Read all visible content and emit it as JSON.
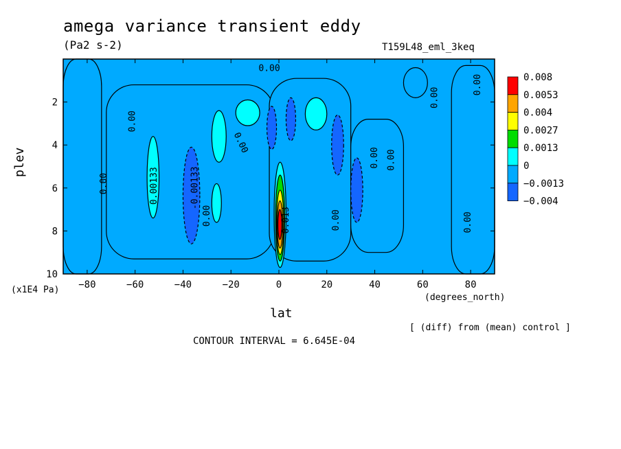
{
  "title": "amega variance transient eddy",
  "units": "(Pa2 s-2)",
  "experiment": "T159L48_eml_3keq",
  "note": "[ (diff) from (mean) control ]",
  "contour_interval": "CONTOUR INTERVAL = 6.645E-04",
  "chart_data": {
    "type": "heatmap",
    "xlabel": "lat",
    "x_unit": "(degrees_north)",
    "ylabel": "plev",
    "y_unit": "(x1E4 Pa)",
    "xlim": [
      -90,
      90
    ],
    "ylim": [
      0,
      10
    ],
    "y_inverted": true,
    "x_ticks": [
      -80,
      -60,
      -40,
      -20,
      0,
      20,
      40,
      60,
      80
    ],
    "y_ticks": [
      2,
      4,
      6,
      8,
      10
    ],
    "colorbar": {
      "labels": [
        "0.008",
        "0.0053",
        "0.004",
        "0.0027",
        "0.0013",
        "0",
        "−0.0013",
        "−0.004"
      ],
      "colors": [
        "#ff0000",
        "#ffa500",
        "#ffff00",
        "#00dd00",
        "#00ffff",
        "#00aaff",
        "#1466ff",
        "#1466ff"
      ],
      "levels": [
        0.008,
        0.0053,
        0.004,
        0.0027,
        0.0013,
        0,
        -0.0013,
        -0.004
      ]
    },
    "background_color": "#00aaff",
    "contour_labels": [
      {
        "text": "0.00",
        "lat": -73,
        "plev": 5.8,
        "angle": -90
      },
      {
        "text": "0.00133",
        "lat": -52,
        "plev": 5.9,
        "angle": -90
      },
      {
        "text": "-0.00133",
        "lat": -35,
        "plev": 6.0,
        "angle": -90
      },
      {
        "text": "0.00",
        "lat": -61,
        "plev": 2.9,
        "angle": -90
      },
      {
        "text": "0.00",
        "lat": -30,
        "plev": 7.3,
        "angle": -90
      },
      {
        "text": "0.00",
        "lat": -16,
        "plev": 3.9,
        "angle": 65
      },
      {
        "text": "0.00",
        "lat": -4,
        "plev": 0.45,
        "angle": 0
      },
      {
        "text": "0.00",
        "lat": 24,
        "plev": 7.5,
        "angle": -90
      },
      {
        "text": "0.00",
        "lat": 40,
        "plev": 4.6,
        "angle": -90
      },
      {
        "text": "0.00",
        "lat": 47,
        "plev": 4.7,
        "angle": -90
      },
      {
        "text": "0.00",
        "lat": 65,
        "plev": 1.8,
        "angle": -90
      },
      {
        "text": "0.00",
        "lat": 83,
        "plev": 1.2,
        "angle": -90
      },
      {
        "text": "0.00",
        "lat": 79,
        "plev": 7.6,
        "angle": -90
      },
      {
        "text": "0.013",
        "lat": 3,
        "plev": 7.5,
        "angle": -90
      }
    ],
    "regions": [
      {
        "v": 0,
        "lat": [
          -90,
          -74
        ],
        "plev": [
          0,
          10
        ]
      },
      {
        "v": 0,
        "lat": [
          -72,
          -2
        ],
        "plev": [
          1.2,
          9.3
        ]
      },
      {
        "v": 0,
        "lat": [
          -4,
          30
        ],
        "plev": [
          0.9,
          9.4
        ]
      },
      {
        "v": 0,
        "lat": [
          30,
          52
        ],
        "plev": [
          2.8,
          9.0
        ]
      },
      {
        "v": 0,
        "lat": [
          52,
          62
        ],
        "plev": [
          0.4,
          1.8
        ]
      },
      {
        "v": 0,
        "lat": [
          72,
          90
        ],
        "plev": [
          0.3,
          10
        ]
      },
      {
        "v": 0.0013,
        "lat": [
          -55,
          -50
        ],
        "plev": [
          3.6,
          7.4
        ]
      },
      {
        "v": 0.0013,
        "lat": [
          -28,
          -22
        ],
        "plev": [
          2.4,
          4.8
        ]
      },
      {
        "v": 0.0013,
        "lat": [
          -28,
          -24
        ],
        "plev": [
          5.8,
          7.6
        ]
      },
      {
        "v": 0.0013,
        "lat": [
          -18,
          -8
        ],
        "plev": [
          1.9,
          3.1
        ]
      },
      {
        "v": 0.0013,
        "lat": [
          11,
          20
        ],
        "plev": [
          1.8,
          3.3
        ]
      },
      {
        "v": -0.0013,
        "lat": [
          -40,
          -33
        ],
        "plev": [
          4.1,
          8.6
        ]
      },
      {
        "v": -0.0013,
        "lat": [
          -5,
          -1
        ],
        "plev": [
          2.2,
          4.2
        ]
      },
      {
        "v": -0.0013,
        "lat": [
          3,
          7
        ],
        "plev": [
          1.8,
          3.8
        ]
      },
      {
        "v": -0.0013,
        "lat": [
          22,
          27
        ],
        "plev": [
          2.6,
          5.4
        ]
      },
      {
        "v": -0.0013,
        "lat": [
          30,
          35
        ],
        "plev": [
          4.6,
          7.6
        ]
      },
      {
        "v": 0.0013,
        "lat": [
          -2,
          3
        ],
        "plev": [
          4.8,
          9.7
        ]
      },
      {
        "v": 0.0027,
        "lat": [
          -1.4,
          2.4
        ],
        "plev": [
          5.4,
          9.4
        ]
      },
      {
        "v": 0.004,
        "lat": [
          -1,
          2
        ],
        "plev": [
          6.1,
          9.1
        ]
      },
      {
        "v": 0.0053,
        "lat": [
          -0.7,
          1.6
        ],
        "plev": [
          6.6,
          8.8
        ]
      },
      {
        "v": 0.008,
        "lat": [
          -0.4,
          1.2
        ],
        "plev": [
          7.0,
          8.4
        ]
      }
    ]
  }
}
